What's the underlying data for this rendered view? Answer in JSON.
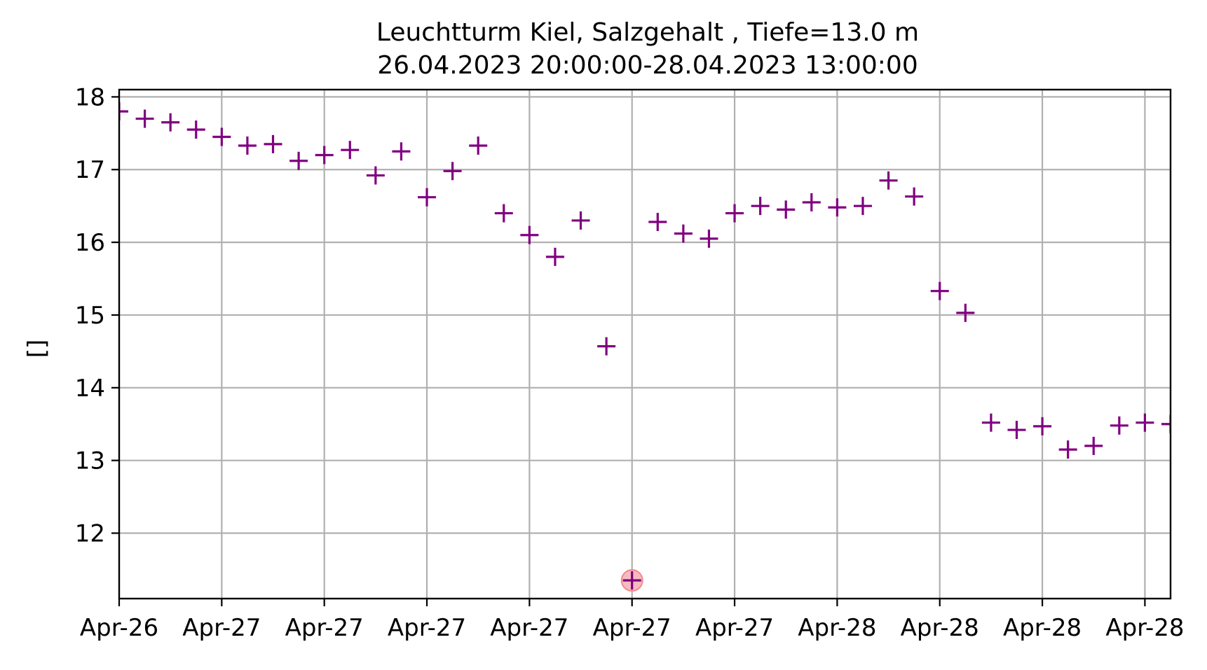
{
  "chart_data": {
    "type": "scatter",
    "title_line1": "Leuchtturm Kiel, Salzgehalt , Tiefe=13.0 m",
    "title_line2": "26.04.2023 20:00:00-28.04.2023 13:00:00",
    "xlabel": "",
    "ylabel": "[]",
    "x_tick_labels": [
      "Apr-26",
      "Apr-27",
      "Apr-27",
      "Apr-27",
      "Apr-27",
      "Apr-27",
      "Apr-27",
      "Apr-28",
      "Apr-28",
      "Apr-28",
      "Apr-28"
    ],
    "y_ticks": [
      12,
      13,
      14,
      15,
      16,
      17,
      18
    ],
    "ylim": [
      11.1,
      18.1
    ],
    "x_start": "2023-04-26 20:00",
    "x_end": "2023-04-28 13:00",
    "x_interval_hours": 1,
    "grid": true,
    "marker": "+",
    "marker_color": "#800080",
    "highlight_color": "#f4a3a8",
    "highlighted_index": 20,
    "values": [
      17.8,
      17.7,
      17.65,
      17.55,
      17.45,
      17.33,
      17.35,
      17.12,
      17.2,
      17.27,
      16.92,
      17.25,
      16.62,
      16.98,
      17.33,
      16.4,
      16.1,
      15.8,
      16.3,
      14.57,
      11.35,
      16.28,
      16.12,
      16.05,
      16.4,
      16.5,
      16.45,
      16.55,
      16.48,
      16.5,
      16.85,
      16.63,
      15.33,
      15.03,
      13.52,
      13.42,
      13.47,
      13.15,
      13.2,
      13.48,
      13.52,
      13.5
    ]
  }
}
